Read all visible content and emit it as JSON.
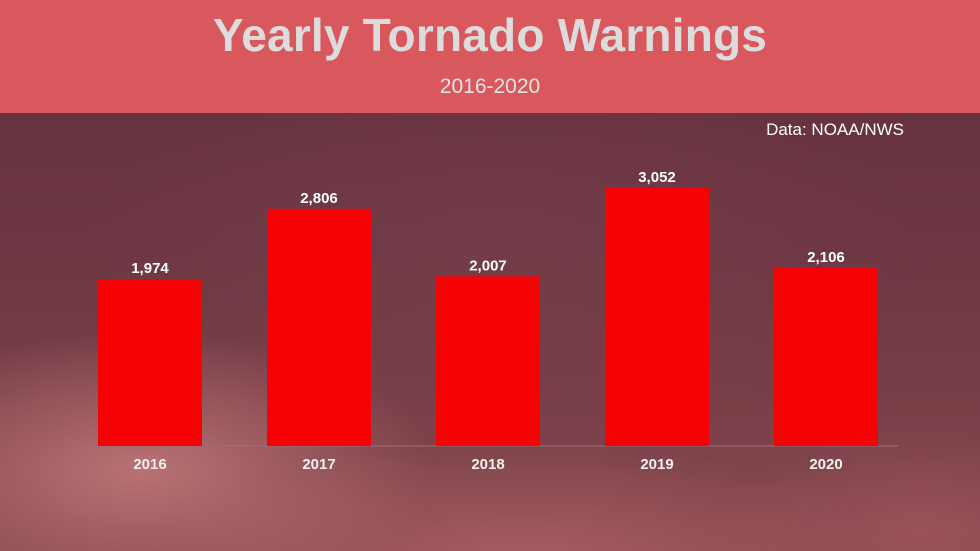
{
  "header": {
    "title": "Yearly Tornado Warnings",
    "subtitle": "2016-2020"
  },
  "source_note": "Data: NOAA/NWS",
  "colors": {
    "header_background": "#d9585d",
    "bar": "#f50205"
  },
  "chart_data": {
    "type": "bar",
    "title": "Yearly Tornado Warnings",
    "subtitle": "2016-2020",
    "categories": [
      "2016",
      "2017",
      "2018",
      "2019",
      "2020"
    ],
    "values": [
      1974,
      2806,
      2007,
      3052,
      2106
    ],
    "value_labels": [
      "1,974",
      "2,806",
      "2,007",
      "3,052",
      "2,106"
    ],
    "xlabel": "",
    "ylabel": "",
    "ylim": [
      0,
      3052
    ],
    "grid": false,
    "legend": "none"
  }
}
